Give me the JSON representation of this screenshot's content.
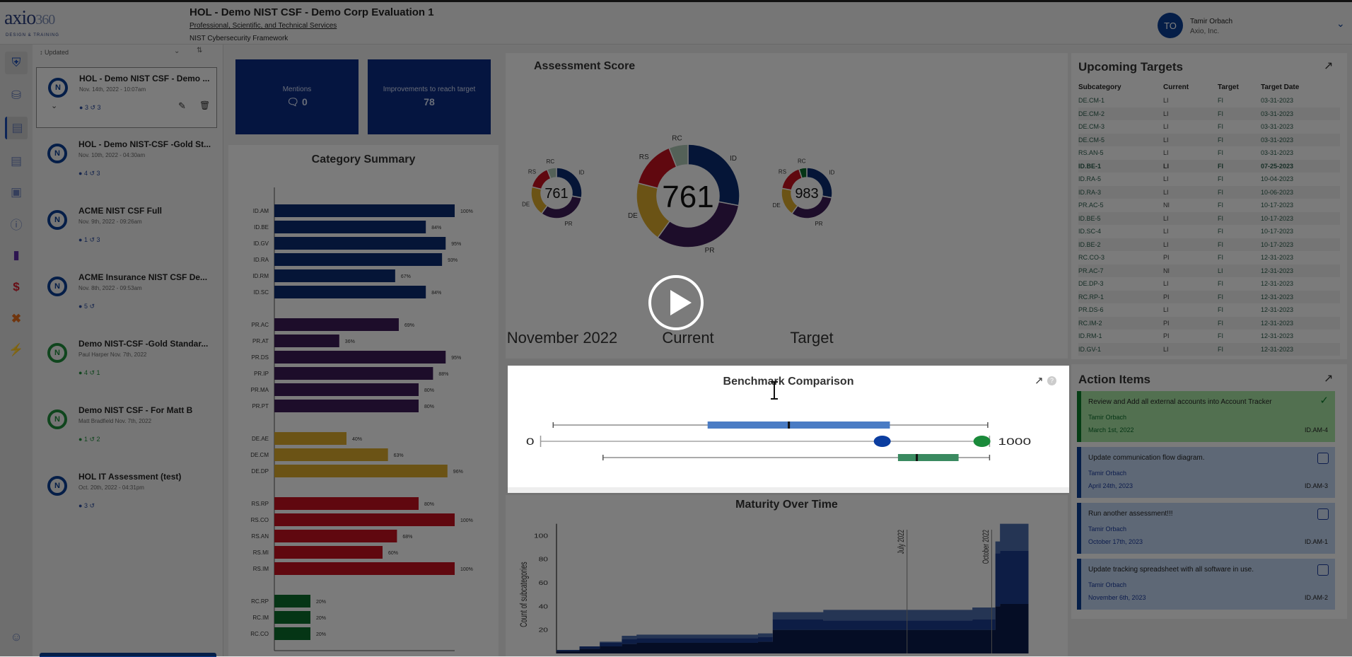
{
  "header": {
    "logo": "axio",
    "logo_suffix": "360",
    "logo_tagline": "DESIGN & TRAINING",
    "title": "HOL - Demo NIST CSF - Demo Corp Evaluation 1",
    "industry": "Professional, Scientific, and Technical Services",
    "framework": "NIST Cybersecurity Framework",
    "user": {
      "initials": "TO",
      "name": "Tamir Orbach",
      "org": "Axio, Inc."
    }
  },
  "sidebar": {
    "icons": [
      "shield-check-icon",
      "database-icon",
      "chart-icon",
      "table-icon",
      "calendar-icon",
      "info-icon",
      "document-icon",
      "dollar-icon",
      "tools-icon",
      "lightning-icon"
    ],
    "bottom_icon": "bot-icon"
  },
  "list": {
    "sort_label": "Updated",
    "items": [
      {
        "title": "HOL - Demo NIST CSF - Demo ...",
        "meta": "Nov. 14th, 2022 - 10:07am",
        "users": "3",
        "tasks": "3",
        "color": "blue",
        "selected": true
      },
      {
        "title": "HOL - Demo NIST-CSF -Gold St...",
        "meta": "Nov. 10th, 2022 - 04:30am",
        "users": "4",
        "tasks": "3",
        "color": "blue"
      },
      {
        "title": "ACME NIST CSF Full",
        "meta": "Nov. 9th, 2022 - 09:26am",
        "users": "1",
        "tasks": "3",
        "color": "blue"
      },
      {
        "title": "ACME Insurance NIST CSF De...",
        "meta": "Nov. 8th, 2022 - 09:53am",
        "users": "5",
        "tasks": "",
        "color": "blue"
      },
      {
        "title": "Demo NIST-CSF -Gold Standar...",
        "meta": "Paul Harper  Nov. 7th, 2022",
        "users": "4",
        "tasks": "1",
        "color": "green"
      },
      {
        "title": "Demo NIST CSF - For Matt B",
        "meta": "Matt Bradfield  Nov. 7th, 2022",
        "users": "1",
        "tasks": "2",
        "color": "green"
      },
      {
        "title": "HOL IT Assessment (test)",
        "meta": "Oct. 20th, 2022 - 04:31pm",
        "users": "3",
        "tasks": "",
        "color": "blue"
      }
    ]
  },
  "kpis": {
    "mentions": {
      "label": "Mentions",
      "value": "0"
    },
    "improvements": {
      "label": "Improvements to reach target",
      "value": "78"
    }
  },
  "colors": {
    "ID": "#0a2a6e",
    "PR": "#3a1a55",
    "DE": "#d6a62a",
    "RS": "#c0101e",
    "RC": "#0a6a2a",
    "RC_current": "#a9c2b0"
  },
  "chart_data": [
    {
      "type": "bar",
      "title": "Category Summary",
      "orientation": "horizontal",
      "xlim": [
        0,
        100
      ],
      "groups": [
        {
          "function": "ID",
          "categories": [
            "ID.AM",
            "ID.BE",
            "ID.GV",
            "ID.RA",
            "ID.RM",
            "ID.SC"
          ],
          "values": [
            100,
            84,
            95,
            93,
            67,
            84
          ]
        },
        {
          "function": "PR",
          "categories": [
            "PR.AC",
            "PR.AT",
            "PR.DS",
            "PR.IP",
            "PR.MA",
            "PR.PT"
          ],
          "values": [
            69,
            36,
            95,
            88,
            80,
            80
          ]
        },
        {
          "function": "DE",
          "categories": [
            "DE.AE",
            "DE.CM",
            "DE.DP"
          ],
          "values": [
            40,
            63,
            96
          ]
        },
        {
          "function": "RS",
          "categories": [
            "RS.RP",
            "RS.CO",
            "RS.AN",
            "RS.MI",
            "RS.IM"
          ],
          "values": [
            80,
            100,
            68,
            60,
            100
          ]
        },
        {
          "function": "RC",
          "categories": [
            "RC.RP",
            "RC.IM",
            "RC.CO"
          ],
          "values": [
            20,
            20,
            20
          ]
        }
      ]
    },
    {
      "type": "pie",
      "title": "Assessment Score",
      "donuts": [
        {
          "caption": "November 2022",
          "score": "761",
          "slices": [
            {
              "label": "ID",
              "value": 28
            },
            {
              "label": "PR",
              "value": 32
            },
            {
              "label": "DE",
              "value": 19
            },
            {
              "label": "RS",
              "value": 15
            },
            {
              "label": "RC",
              "value": 6
            }
          ]
        },
        {
          "caption": "Current",
          "score": "761",
          "slices": [
            {
              "label": "ID",
              "value": 28
            },
            {
              "label": "PR",
              "value": 32
            },
            {
              "label": "DE",
              "value": 19
            },
            {
              "label": "RS",
              "value": 15
            },
            {
              "label": "RC",
              "value": 6
            }
          ]
        },
        {
          "caption": "Target",
          "score": "983",
          "slices": [
            {
              "label": "ID",
              "value": 28
            },
            {
              "label": "PR",
              "value": 32
            },
            {
              "label": "DE",
              "value": 18
            },
            {
              "label": "RS",
              "value": 17
            },
            {
              "label": "RC",
              "value": 5
            }
          ]
        }
      ]
    },
    {
      "type": "boxplot",
      "title": "Benchmark Comparison",
      "xlim": [
        0,
        1000
      ],
      "axis_labels": [
        "0",
        "1000"
      ],
      "boxes": [
        {
          "min": 28,
          "q1": 372,
          "median": 553,
          "q3": 778,
          "max": 996,
          "color": "#4a7cc4"
        },
        {
          "min": 139,
          "q1": 796,
          "median": 838,
          "q3": 931,
          "max": 1000,
          "color": "#3a8a60"
        }
      ],
      "points": [
        {
          "value": 761,
          "color": "#0b3da0"
        },
        {
          "value": 983,
          "color": "#1a8a3a"
        }
      ]
    },
    {
      "type": "area",
      "title": "Maturity Over Time",
      "ylabel": "Count of subcategories",
      "ylim": [
        0,
        110
      ],
      "yticks": [
        20,
        40,
        60,
        80,
        100
      ],
      "markers": [
        "July 2022",
        "October 2022"
      ],
      "marker_dates": [
        "2022-07-01",
        "2022-10-01"
      ],
      "x": [
        "2021-06-15",
        "2021-07-10",
        "2021-08-01",
        "2021-08-25",
        "2021-09-10",
        "2022-01-20",
        "2022-02-05",
        "2022-04-01",
        "2022-09-10",
        "2022-10-05",
        "2022-10-10",
        "2022-11-10"
      ],
      "series": [
        {
          "values": [
            2,
            4,
            6,
            8,
            9,
            10,
            20,
            20,
            20,
            40,
            42,
            42
          ]
        },
        {
          "values": [
            1,
            2,
            3,
            4,
            4,
            4,
            9,
            8,
            9,
            45,
            45,
            45
          ]
        },
        {
          "values": [
            0,
            0,
            1,
            3,
            3,
            3,
            6,
            9,
            10,
            10,
            23,
            23
          ]
        }
      ]
    }
  ],
  "benchmark": {
    "title": "Benchmark Comparison"
  },
  "upcoming": {
    "title": "Upcoming Targets",
    "columns": [
      "Subcategory",
      "Current",
      "Target",
      "Target Date"
    ],
    "rows": [
      [
        "DE.CM-1",
        "LI",
        "FI",
        "03-31-2023"
      ],
      [
        "DE.CM-2",
        "LI",
        "FI",
        "03-31-2023"
      ],
      [
        "DE.CM-3",
        "LI",
        "FI",
        "03-31-2023"
      ],
      [
        "DE.CM-5",
        "LI",
        "FI",
        "03-31-2023"
      ],
      [
        "RS.AN-5",
        "LI",
        "FI",
        "03-31-2023"
      ],
      [
        "ID.BE-1",
        "LI",
        "FI",
        "07-25-2023"
      ],
      [
        "ID.RA-5",
        "LI",
        "FI",
        "10-04-2023"
      ],
      [
        "ID.RA-3",
        "LI",
        "FI",
        "10-06-2023"
      ],
      [
        "PR.AC-5",
        "NI",
        "FI",
        "10-17-2023"
      ],
      [
        "ID.BE-5",
        "LI",
        "FI",
        "10-17-2023"
      ],
      [
        "ID.SC-4",
        "LI",
        "FI",
        "10-17-2023"
      ],
      [
        "ID.BE-2",
        "LI",
        "FI",
        "10-17-2023"
      ],
      [
        "RC.CO-3",
        "PI",
        "FI",
        "12-31-2023"
      ],
      [
        "PR.AC-7",
        "NI",
        "LI",
        "12-31-2023"
      ],
      [
        "DE.DP-3",
        "LI",
        "FI",
        "12-31-2023"
      ],
      [
        "RC.RP-1",
        "PI",
        "FI",
        "12-31-2023"
      ],
      [
        "PR.DS-6",
        "LI",
        "FI",
        "12-31-2023"
      ],
      [
        "RC.IM-2",
        "PI",
        "FI",
        "12-31-2023"
      ],
      [
        "ID.RM-1",
        "PI",
        "FI",
        "12-31-2023"
      ],
      [
        "ID.GV-1",
        "LI",
        "FI",
        "12-31-2023"
      ]
    ]
  },
  "actions": {
    "title": "Action Items",
    "items": [
      {
        "text": "Review and Add all external accounts into Account Tracker",
        "owner": "Tamir Orbach",
        "date": "March 1st, 2022",
        "code": "ID.AM-4",
        "done": true
      },
      {
        "text": "Update communication flow diagram.",
        "owner": "Tamir Orbach",
        "date": "April 24th, 2023",
        "code": "ID.AM-3",
        "done": false
      },
      {
        "text": "Run another assessment!!!",
        "owner": "Tamir Orbach",
        "date": "October 17th, 2023",
        "code": "ID.AM-1",
        "done": false
      },
      {
        "text": "Update tracking spreadsheet with all software in use.",
        "owner": "Tamir Orbach",
        "date": "November 6th, 2023",
        "code": "ID.AM-2",
        "done": false
      }
    ]
  }
}
